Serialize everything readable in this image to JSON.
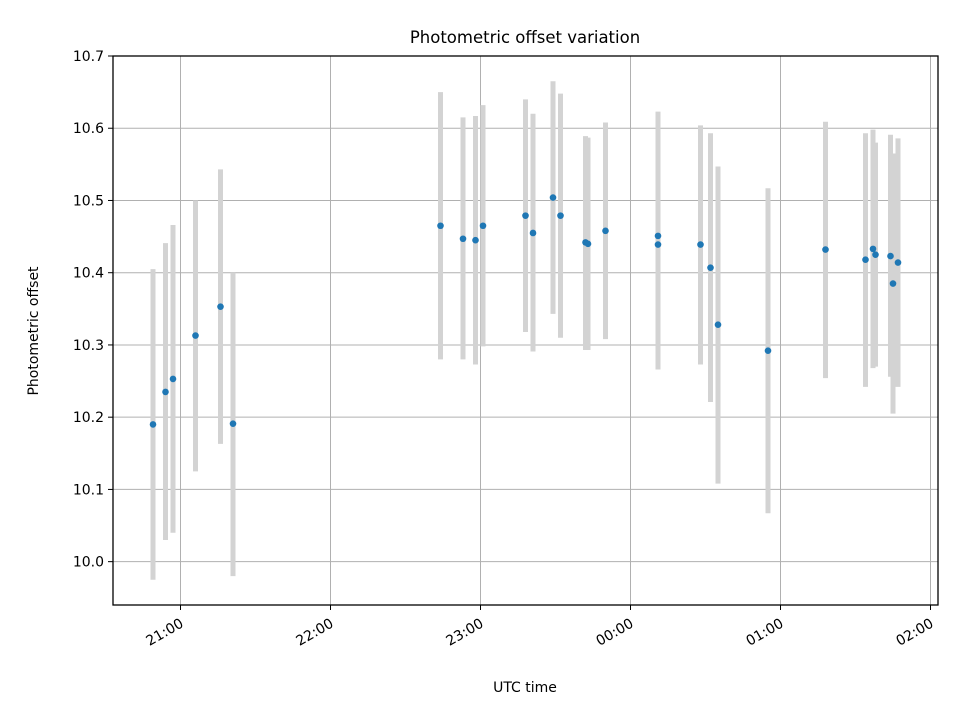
{
  "chart_data": {
    "type": "scatter",
    "title": "Photometric offset variation",
    "xlabel": "UTC time",
    "ylabel": "Photometric offset",
    "grid": true,
    "legend": "none",
    "colors": {
      "points": "#1f77b4",
      "errorbars": "#d3d3d3",
      "grid": "#b0b0b0"
    },
    "xlim": [
      "20:33",
      "02:03"
    ],
    "ylim": [
      9.94,
      10.7
    ],
    "x_ticks": [
      "21:00",
      "22:00",
      "23:00",
      "00:00",
      "01:00",
      "02:00"
    ],
    "y_ticks": [
      "10.0",
      "10.1",
      "10.2",
      "10.3",
      "10.4",
      "10.5",
      "10.6",
      "10.7"
    ],
    "points": [
      {
        "x": "20:49",
        "y": 10.19,
        "low": 9.975,
        "high": 10.405
      },
      {
        "x": "20:54",
        "y": 10.235,
        "low": 10.03,
        "high": 10.441
      },
      {
        "x": "20:57",
        "y": 10.253,
        "low": 10.04,
        "high": 10.466
      },
      {
        "x": "21:06",
        "y": 10.313,
        "low": 10.125,
        "high": 10.5
      },
      {
        "x": "21:16",
        "y": 10.353,
        "low": 10.163,
        "high": 10.543
      },
      {
        "x": "21:21",
        "y": 10.191,
        "low": 9.98,
        "high": 10.4
      },
      {
        "x": "22:44",
        "y": 10.465,
        "low": 10.28,
        "high": 10.65
      },
      {
        "x": "22:53",
        "y": 10.447,
        "low": 10.28,
        "high": 10.615
      },
      {
        "x": "22:58",
        "y": 10.445,
        "low": 10.273,
        "high": 10.617
      },
      {
        "x": "23:01",
        "y": 10.465,
        "low": 10.298,
        "high": 10.632
      },
      {
        "x": "23:18",
        "y": 10.479,
        "low": 10.318,
        "high": 10.64
      },
      {
        "x": "23:21",
        "y": 10.455,
        "low": 10.291,
        "high": 10.62
      },
      {
        "x": "23:29",
        "y": 10.504,
        "low": 10.343,
        "high": 10.665
      },
      {
        "x": "23:32",
        "y": 10.479,
        "low": 10.31,
        "high": 10.648
      },
      {
        "x": "23:42",
        "y": 10.442,
        "low": 10.293,
        "high": 10.589
      },
      {
        "x": "23:43",
        "y": 10.44,
        "low": 10.293,
        "high": 10.587
      },
      {
        "x": "23:50",
        "y": 10.458,
        "low": 10.308,
        "high": 10.608
      },
      {
        "x": "00:11",
        "y": 10.451,
        "low": 10.278,
        "high": 10.623
      },
      {
        "x": "00:11",
        "y": 10.439,
        "low": 10.266,
        "high": 10.612
      },
      {
        "x": "00:28",
        "y": 10.439,
        "low": 10.273,
        "high": 10.604
      },
      {
        "x": "00:32",
        "y": 10.407,
        "low": 10.221,
        "high": 10.593
      },
      {
        "x": "00:35",
        "y": 10.328,
        "low": 10.108,
        "high": 10.547
      },
      {
        "x": "00:55",
        "y": 10.292,
        "low": 10.067,
        "high": 10.517
      },
      {
        "x": "01:18",
        "y": 10.432,
        "low": 10.254,
        "high": 10.609
      },
      {
        "x": "01:34",
        "y": 10.418,
        "low": 10.242,
        "high": 10.593
      },
      {
        "x": "01:37",
        "y": 10.433,
        "low": 10.268,
        "high": 10.598
      },
      {
        "x": "01:38",
        "y": 10.425,
        "low": 10.27,
        "high": 10.58
      },
      {
        "x": "01:44",
        "y": 10.423,
        "low": 10.256,
        "high": 10.591
      },
      {
        "x": "01:45",
        "y": 10.385,
        "low": 10.205,
        "high": 10.565
      },
      {
        "x": "01:47",
        "y": 10.414,
        "low": 10.242,
        "high": 10.586
      }
    ]
  }
}
